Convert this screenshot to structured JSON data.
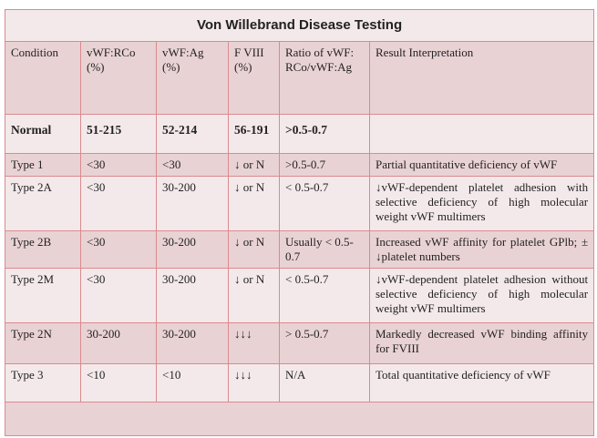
{
  "title": "Von Willebrand Disease Testing",
  "headers": [
    "Condition",
    "vWF:RCo (%)",
    "vWF:Ag (%)",
    "F VIII (%)",
    "Ratio of vWF: RCo/vWF:Ag",
    "Result Interpretation"
  ],
  "rows": [
    [
      "Normal",
      "51-215",
      "52-214",
      "56-191",
      ">0.5-0.7",
      ""
    ],
    [
      "Type 1",
      "<30",
      "<30",
      "↓ or N",
      ">0.5-0.7",
      "Partial quantitative deficiency of vWF"
    ],
    [
      "Type 2A",
      "<30",
      "30-200",
      "↓ or N",
      "< 0.5-0.7",
      "↓vWF-dependent platelet adhesion with selective deficiency of high molecular weight vWF multimers"
    ],
    [
      "Type 2B",
      "<30",
      "30-200",
      "↓ or N",
      "Usually < 0.5-0.7",
      "Increased vWF affinity for platelet GPlb; ± ↓platelet numbers"
    ],
    [
      "Type 2M",
      "<30",
      "30-200",
      "↓ or N",
      "< 0.5-0.7",
      "↓vWF-dependent platelet adhesion without selective deficiency of high molecular weight vWF multimers"
    ],
    [
      "Type 2N",
      "30-200",
      "30-200",
      "↓↓↓",
      "> 0.5-0.7",
      "Markedly decreased vWF binding affinity for FVIII"
    ],
    [
      "Type 3",
      "<10",
      "<10",
      "↓↓↓",
      "N/A",
      "Total quantitative deficiency of vWF"
    ]
  ]
}
